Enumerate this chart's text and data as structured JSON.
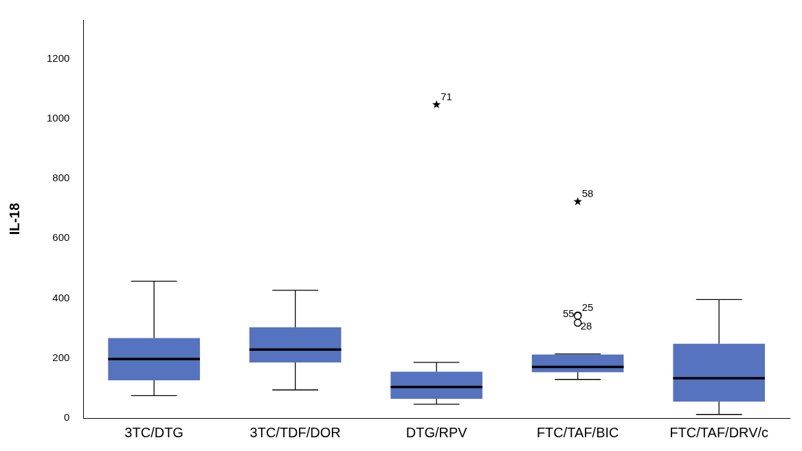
{
  "chart_data": {
    "type": "box",
    "ylabel": "IL-18",
    "categories": [
      "3TC/DTG",
      "3TC/TDF/DOR",
      "DTG/RPV",
      "FTC/TAF/BIC",
      "FTC/TAF/DRV/c"
    ],
    "series": [
      {
        "type": "box",
        "color": "#5573be",
        "boxes": [
          {
            "low": 75,
            "q1": 126,
            "median": 197,
            "q3": 267,
            "high": 457
          },
          {
            "low": 94,
            "q1": 186,
            "median": 229,
            "q3": 303,
            "high": 427
          },
          {
            "low": 46,
            "q1": 64,
            "median": 104,
            "q3": 155,
            "high": 186
          },
          {
            "low": 129,
            "q1": 153,
            "median": 171,
            "q3": 212,
            "high": 214
          },
          {
            "low": 12,
            "q1": 55,
            "median": 133,
            "q3": 248,
            "high": 396
          }
        ]
      },
      {
        "type": "scatter",
        "marker": "star",
        "color": "#000000",
        "x": [
          "DTG/RPV",
          "FTC/TAF/BIC"
        ],
        "values": [
          1047,
          723
        ]
      },
      {
        "type": "scatter",
        "marker": "circle",
        "color": "#000000",
        "x": [
          "FTC/TAF/BIC",
          "FTC/TAF/BIC",
          "FTC/TAF/BIC"
        ],
        "values": [
          343,
          341,
          318
        ]
      }
    ],
    "annotations": [
      {
        "text": "71",
        "x": "DTG/RPV",
        "y": 1047
      },
      {
        "text": "58",
        "x": "FTC/TAF/BIC",
        "y": 723
      },
      {
        "text": "25",
        "x": "FTC/TAF/BIC",
        "y": 343
      },
      {
        "text": "55",
        "x": "FTC/TAF/BIC",
        "y": 341
      },
      {
        "text": "28",
        "x": "FTC/TAF/BIC",
        "y": 318
      }
    ],
    "ylim": [
      0,
      1330
    ],
    "yticks": [
      0,
      200,
      400,
      600,
      800,
      1000,
      1200
    ],
    "grid": false,
    "legend": false
  }
}
